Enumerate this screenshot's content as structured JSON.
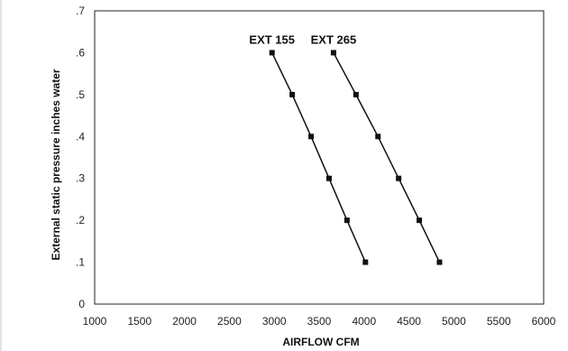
{
  "chart_data": {
    "type": "line",
    "title": "",
    "xlabel": "AIRFLOW CFM",
    "ylabel": "External static pressure inches water",
    "xlim": [
      1000,
      6000
    ],
    "ylim": [
      0,
      0.7
    ],
    "xticks": [
      1000,
      1500,
      2000,
      2500,
      3000,
      3500,
      4000,
      4500,
      5000,
      5500,
      6000
    ],
    "xtick_labels": [
      "1000",
      "1500",
      "2000",
      "2500",
      "3000",
      "3500",
      "4000",
      "4500",
      "5000",
      "5500",
      "6000"
    ],
    "yticks": [
      0,
      0.1,
      0.2,
      0.3,
      0.4,
      0.5,
      0.6,
      0.7
    ],
    "ytick_labels": [
      "0",
      ".1",
      ".2",
      ".3",
      ".4",
      ".5",
      ".6",
      ".7"
    ],
    "grid": false,
    "legend": "none",
    "series": [
      {
        "name": "EXT 155",
        "points": [
          {
            "x": 2975,
            "y": 0.6
          },
          {
            "x": 3200,
            "y": 0.5
          },
          {
            "x": 3410,
            "y": 0.4
          },
          {
            "x": 3610,
            "y": 0.3
          },
          {
            "x": 3810,
            "y": 0.2
          },
          {
            "x": 4015,
            "y": 0.1
          }
        ]
      },
      {
        "name": "EXT 265",
        "points": [
          {
            "x": 3660,
            "y": 0.6
          },
          {
            "x": 3910,
            "y": 0.5
          },
          {
            "x": 4155,
            "y": 0.4
          },
          {
            "x": 4385,
            "y": 0.3
          },
          {
            "x": 4615,
            "y": 0.2
          },
          {
            "x": 4840,
            "y": 0.1
          }
        ]
      }
    ],
    "colors": {
      "line": "#111111",
      "marker": "#111111",
      "frame": "#222222"
    }
  }
}
